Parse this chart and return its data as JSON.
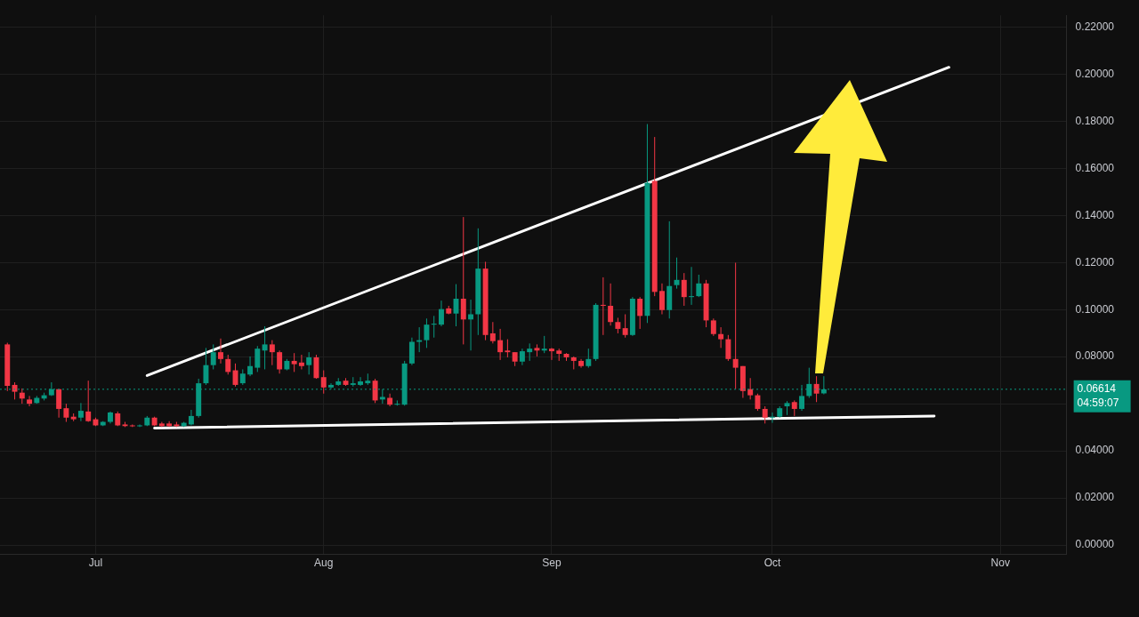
{
  "chart_data": {
    "type": "candlestick",
    "grid": true,
    "marker": "none",
    "ylim": [
      -0.004,
      0.225
    ],
    "yticks": [
      {
        "value": 0,
        "label": "0.00000"
      },
      {
        "value": 0.02,
        "label": "0.02000"
      },
      {
        "value": 0.04,
        "label": "0.04000"
      },
      {
        "value": 0.06,
        "label": null
      },
      {
        "value": 0.08,
        "label": "0.08000"
      },
      {
        "value": 0.1,
        "label": "0.10000"
      },
      {
        "value": 0.12,
        "label": "0.12000"
      },
      {
        "value": 0.14,
        "label": "0.14000"
      },
      {
        "value": 0.16,
        "label": "0.16000"
      },
      {
        "value": 0.18,
        "label": "0.18000"
      },
      {
        "value": 0.2,
        "label": "0.20000"
      },
      {
        "value": 0.22,
        "label": "0.22000"
      }
    ],
    "xlim": [
      "--06-18",
      "--11-10"
    ],
    "xticks": [
      {
        "value": "--07-01",
        "label": "Jul"
      },
      {
        "value": "--08-01",
        "label": "Aug"
      },
      {
        "value": "--09-01",
        "label": "Sep"
      },
      {
        "value": "--10-01",
        "label": "Oct"
      },
      {
        "value": "--11-01",
        "label": "Nov"
      }
    ],
    "ref_lines": [
      {
        "axis": "y",
        "value": 0.06614,
        "label": "0.06614",
        "color": "#089981",
        "line_style": "dotted"
      }
    ],
    "annotations": [
      "04:59:07"
    ],
    "series": [
      {
        "type": "candlestick",
        "x": [
          "--06-19",
          "--06-20",
          "--06-21",
          "--06-22",
          "--06-23",
          "--06-24",
          "--06-25",
          "--06-26",
          "--06-27",
          "--06-28",
          "--06-29",
          "--06-30",
          "--07-01",
          "--07-02",
          "--07-03",
          "--07-04",
          "--07-05",
          "--07-06",
          "--07-07",
          "--07-08",
          "--07-09",
          "--07-10",
          "--07-11",
          "--07-12",
          "--07-13",
          "--07-14",
          "--07-15",
          "--07-16",
          "--07-17",
          "--07-18",
          "--07-19",
          "--07-20",
          "--07-21",
          "--07-22",
          "--07-23",
          "--07-24",
          "--07-25",
          "--07-26",
          "--07-27",
          "--07-28",
          "--07-29",
          "--07-30",
          "--07-31",
          "--08-01",
          "--08-02",
          "--08-03",
          "--08-04",
          "--08-05",
          "--08-06",
          "--08-07",
          "--08-08",
          "--08-09",
          "--08-10",
          "--08-11",
          "--08-12",
          "--08-13",
          "--08-14",
          "--08-15",
          "--08-16",
          "--08-17",
          "--08-18",
          "--08-19",
          "--08-20",
          "--08-21",
          "--08-22",
          "--08-23",
          "--08-24",
          "--08-25",
          "--08-26",
          "--08-27",
          "--08-28",
          "--08-29",
          "--08-30",
          "--08-31",
          "--09-01",
          "--09-02",
          "--09-03",
          "--09-04",
          "--09-05",
          "--09-06",
          "--09-07",
          "--09-08",
          "--09-09",
          "--09-10",
          "--09-11",
          "--09-12",
          "--09-13",
          "--09-14",
          "--09-15",
          "--09-16",
          "--09-17",
          "--09-18",
          "--09-19",
          "--09-20",
          "--09-21",
          "--09-22",
          "--09-23",
          "--09-24",
          "--09-25",
          "--09-26",
          "--09-27",
          "--09-28",
          "--09-29",
          "--09-30",
          "--10-01",
          "--10-02",
          "--10-03",
          "--10-04",
          "--10-05",
          "--10-06",
          "--10-07",
          "--10-08"
        ],
        "ohlc": [
          [
            0.0852,
            0.0859,
            0.0654,
            0.0676
          ],
          [
            0.068,
            0.0691,
            0.0618,
            0.0651
          ],
          [
            0.0647,
            0.0665,
            0.06,
            0.0622
          ],
          [
            0.0618,
            0.0633,
            0.0589,
            0.06
          ],
          [
            0.0603,
            0.0633,
            0.06,
            0.0625
          ],
          [
            0.0622,
            0.0647,
            0.0614,
            0.0636
          ],
          [
            0.0636,
            0.0691,
            0.0633,
            0.0662
          ],
          [
            0.0662,
            0.0662,
            0.0541,
            0.0578
          ],
          [
            0.0581,
            0.06,
            0.0523,
            0.0541
          ],
          [
            0.0545,
            0.0559,
            0.0526,
            0.0534
          ],
          [
            0.0541,
            0.0603,
            0.0526,
            0.057
          ],
          [
            0.0567,
            0.0698,
            0.0523,
            0.0526
          ],
          [
            0.0534,
            0.0541,
            0.0505,
            0.0508
          ],
          [
            0.0508,
            0.0526,
            0.0505,
            0.0523
          ],
          [
            0.0523,
            0.0567,
            0.0516,
            0.0563
          ],
          [
            0.0559,
            0.0567,
            0.0505,
            0.0508
          ],
          [
            0.0512,
            0.0523,
            0.0501,
            0.0505
          ],
          [
            0.0508,
            0.0512,
            0.0501,
            0.0505
          ],
          [
            0.0505,
            0.0512,
            0.0501,
            0.0508
          ],
          [
            0.0508,
            0.0548,
            0.0505,
            0.0541
          ],
          [
            0.0541,
            0.0545,
            0.0505,
            0.0508
          ],
          [
            0.0516,
            0.0523,
            0.0501,
            0.0505
          ],
          [
            0.0516,
            0.0526,
            0.0501,
            0.0505
          ],
          [
            0.0512,
            0.0523,
            0.0501,
            0.0505
          ],
          [
            0.0505,
            0.0523,
            0.0501,
            0.0519
          ],
          [
            0.0512,
            0.0574,
            0.0508,
            0.0548
          ],
          [
            0.0548,
            0.0706,
            0.0541,
            0.0687
          ],
          [
            0.0687,
            0.0837,
            0.068,
            0.0764
          ],
          [
            0.0764,
            0.0852,
            0.0746,
            0.0819
          ],
          [
            0.0819,
            0.0877,
            0.0771,
            0.079
          ],
          [
            0.079,
            0.0808,
            0.0724,
            0.0735
          ],
          [
            0.0742,
            0.0771,
            0.0673,
            0.068
          ],
          [
            0.0687,
            0.0746,
            0.068,
            0.0728
          ],
          [
            0.0724,
            0.0801,
            0.0717,
            0.076
          ],
          [
            0.0753,
            0.0845,
            0.0735,
            0.0834
          ],
          [
            0.0826,
            0.0929,
            0.0746,
            0.0852
          ],
          [
            0.0852,
            0.087,
            0.0764,
            0.0819
          ],
          [
            0.0819,
            0.0826,
            0.0728,
            0.0746
          ],
          [
            0.0746,
            0.079,
            0.0742,
            0.0782
          ],
          [
            0.0782,
            0.0815,
            0.0735,
            0.0768
          ],
          [
            0.0775,
            0.0808,
            0.0746,
            0.076
          ],
          [
            0.0764,
            0.0819,
            0.0724,
            0.0797
          ],
          [
            0.0797,
            0.0808,
            0.0706,
            0.0709
          ],
          [
            0.0713,
            0.0742,
            0.0643,
            0.0669
          ],
          [
            0.0669,
            0.0687,
            0.0662,
            0.068
          ],
          [
            0.068,
            0.0709,
            0.0676,
            0.0695
          ],
          [
            0.0698,
            0.0709,
            0.0676,
            0.068
          ],
          [
            0.068,
            0.0713,
            0.0673,
            0.0687
          ],
          [
            0.068,
            0.0713,
            0.0676,
            0.0695
          ],
          [
            0.0687,
            0.0728,
            0.068,
            0.0698
          ],
          [
            0.0698,
            0.0706,
            0.0603,
            0.0614
          ],
          [
            0.0618,
            0.0662,
            0.06,
            0.0629
          ],
          [
            0.0625,
            0.0643,
            0.0589,
            0.0596
          ],
          [
            0.0596,
            0.0614,
            0.0592,
            0.06
          ],
          [
            0.0596,
            0.0782,
            0.0592,
            0.0771
          ],
          [
            0.0771,
            0.0881,
            0.0764,
            0.0863
          ],
          [
            0.0863,
            0.0925,
            0.0819,
            0.087
          ],
          [
            0.087,
            0.0962,
            0.0837,
            0.0936
          ],
          [
            0.0936,
            0.0973,
            0.0881,
            0.094
          ],
          [
            0.0936,
            0.1038,
            0.0929,
            0.1002
          ],
          [
            0.1005,
            0.1016,
            0.098,
            0.0983
          ],
          [
            0.0983,
            0.1108,
            0.0929,
            0.1046
          ],
          [
            0.1046,
            0.1393,
            0.0852,
            0.0958
          ],
          [
            0.0958,
            0.1042,
            0.0826,
            0.098
          ],
          [
            0.098,
            0.1345,
            0.0892,
            0.1174
          ],
          [
            0.1174,
            0.1203,
            0.087,
            0.0892
          ],
          [
            0.0899,
            0.0947,
            0.0856,
            0.0866
          ],
          [
            0.087,
            0.0918,
            0.0786,
            0.0819
          ],
          [
            0.0826,
            0.0874,
            0.0797,
            0.0819
          ],
          [
            0.0819,
            0.0819,
            0.076,
            0.0779
          ],
          [
            0.0779,
            0.0834,
            0.0764,
            0.0823
          ],
          [
            0.0819,
            0.0856,
            0.0782,
            0.0834
          ],
          [
            0.0837,
            0.0852,
            0.0801,
            0.0826
          ],
          [
            0.0826,
            0.0888,
            0.0815,
            0.0834
          ],
          [
            0.0834,
            0.0837,
            0.0786,
            0.0823
          ],
          [
            0.0826,
            0.0834,
            0.0782,
            0.0812
          ],
          [
            0.0812,
            0.0815,
            0.0782,
            0.0797
          ],
          [
            0.0797,
            0.0801,
            0.0746,
            0.0782
          ],
          [
            0.0782,
            0.079,
            0.0753,
            0.076
          ],
          [
            0.076,
            0.0834,
            0.0753,
            0.079
          ],
          [
            0.079,
            0.1027,
            0.0782,
            0.102
          ],
          [
            0.102,
            0.1137,
            0.0892,
            0.1016
          ],
          [
            0.1016,
            0.1111,
            0.0932,
            0.0947
          ],
          [
            0.0947,
            0.0965,
            0.0899,
            0.0918
          ],
          [
            0.0921,
            0.098,
            0.0881,
            0.0892
          ],
          [
            0.0892,
            0.1053,
            0.0888,
            0.1046
          ],
          [
            0.1046,
            0.1053,
            0.0918,
            0.0973
          ],
          [
            0.0973,
            0.1788,
            0.0943,
            0.1539
          ],
          [
            0.1546,
            0.1733,
            0.1057,
            0.1075
          ],
          [
            0.1079,
            0.1111,
            0.098,
            0.0998
          ],
          [
            0.0998,
            0.1375,
            0.0962,
            0.11
          ],
          [
            0.1104,
            0.1221,
            0.1089,
            0.1126
          ],
          [
            0.1126,
            0.1155,
            0.1016,
            0.1053
          ],
          [
            0.1053,
            0.1181,
            0.102,
            0.1057
          ],
          [
            0.1057,
            0.1148,
            0.1053,
            0.1111
          ],
          [
            0.1111,
            0.1126,
            0.0925,
            0.0954
          ],
          [
            0.0954,
            0.0962,
            0.0888,
            0.0896
          ],
          [
            0.0896,
            0.0925,
            0.0837,
            0.0874
          ],
          [
            0.0874,
            0.0892,
            0.0782,
            0.079
          ],
          [
            0.079,
            0.1199,
            0.0662,
            0.0753
          ],
          [
            0.076,
            0.076,
            0.0625,
            0.0654
          ],
          [
            0.0662,
            0.0709,
            0.0618,
            0.0636
          ],
          [
            0.0636,
            0.0643,
            0.057,
            0.0578
          ],
          [
            0.0578,
            0.0589,
            0.0516,
            0.0541
          ],
          [
            0.0541,
            0.0563,
            0.0519,
            0.0545
          ],
          [
            0.0545,
            0.0589,
            0.0541,
            0.0581
          ],
          [
            0.0589,
            0.0611,
            0.0552,
            0.0603
          ],
          [
            0.0607,
            0.0614,
            0.0548,
            0.0578
          ],
          [
            0.0578,
            0.068,
            0.057,
            0.0633
          ],
          [
            0.0633,
            0.0753,
            0.0625,
            0.0684
          ],
          [
            0.0684,
            0.0717,
            0.0607,
            0.0643
          ],
          [
            0.0644,
            0.0717,
            0.064,
            0.06614
          ]
        ],
        "colors": [
          "#f23645",
          "#f23645",
          "#f23645",
          "#f23645",
          "#089981",
          "#089981",
          "#089981",
          "#f23645",
          "#f23645",
          "#f23645",
          "#089981",
          "#f23645",
          "#f23645",
          "#089981",
          "#089981",
          "#f23645",
          "#f23645",
          "#f23645",
          "#089981",
          "#089981",
          "#f23645",
          "#f23645",
          "#f23645",
          "#f23645",
          "#089981",
          "#089981",
          "#089981",
          "#089981",
          "#089981",
          "#f23645",
          "#f23645",
          "#f23645",
          "#089981",
          "#089981",
          "#089981",
          "#089981",
          "#f23645",
          "#f23645",
          "#089981",
          "#f23645",
          "#f23645",
          "#089981",
          "#f23645",
          "#f23645",
          "#089981",
          "#089981",
          "#f23645",
          "#089981",
          "#089981",
          "#089981",
          "#f23645",
          "#089981",
          "#f23645",
          "#089981",
          "#089981",
          "#089981",
          "#089981",
          "#089981",
          "#089981",
          "#089981",
          "#f23645",
          "#089981",
          "#f23645",
          "#089981",
          "#089981",
          "#f23645",
          "#f23645",
          "#f23645",
          "#f23645",
          "#f23645",
          "#089981",
          "#089981",
          "#f23645",
          "#089981",
          "#f23645",
          "#f23645",
          "#f23645",
          "#f23645",
          "#f23645",
          "#089981",
          "#089981",
          "#f23645",
          "#f23645",
          "#f23645",
          "#f23645",
          "#089981",
          "#f23645",
          "#089981",
          "#f23645",
          "#f23645",
          "#089981",
          "#089981",
          "#f23645",
          "#089981",
          "#089981",
          "#f23645",
          "#f23645",
          "#f23645",
          "#f23645",
          "#f23645",
          "#f23645",
          "#f23645",
          "#f23645",
          "#f23645",
          "#089981",
          "#089981",
          "#089981",
          "#f23645",
          "#089981",
          "#089981",
          "#f23645",
          "#089981"
        ]
      },
      {
        "type": "line",
        "color": "#ffffff",
        "x": [
          "--07-08",
          "--10-25"
        ],
        "values": [
          0.072,
          0.2029
        ]
      },
      {
        "type": "line",
        "color": "#ffffff",
        "x": [
          "--07-09",
          "--10-23"
        ],
        "values": [
          0.0497,
          0.0548
        ]
      }
    ]
  }
}
